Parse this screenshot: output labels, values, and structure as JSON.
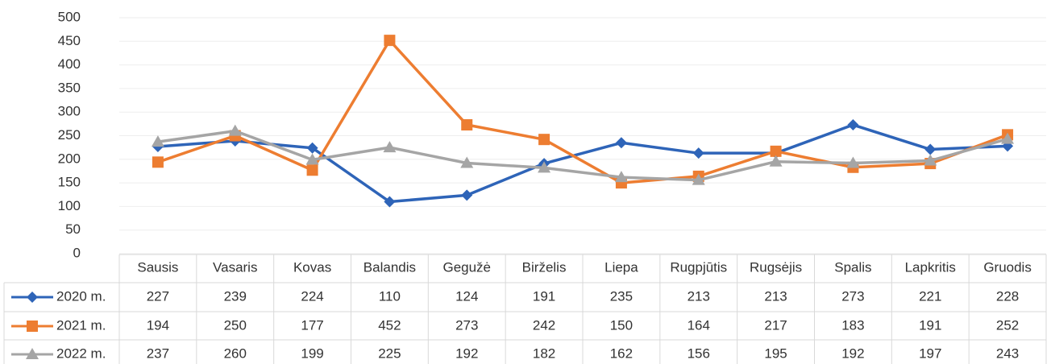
{
  "chart_data": {
    "type": "line",
    "categories": [
      "Sausis",
      "Vasaris",
      "Kovas",
      "Balandis",
      "Gegužė",
      "Birželis",
      "Liepa",
      "Rugpjūtis",
      "Rugsėjis",
      "Spalis",
      "Lapkritis",
      "Gruodis"
    ],
    "series": [
      {
        "name": "2020 m.",
        "color": "#2e64b8",
        "marker": "diamond",
        "values": [
          227,
          239,
          224,
          110,
          124,
          191,
          235,
          213,
          213,
          273,
          221,
          228
        ]
      },
      {
        "name": "2021 m.",
        "color": "#ed7d31",
        "marker": "square",
        "values": [
          194,
          250,
          177,
          452,
          273,
          242,
          150,
          164,
          217,
          183,
          191,
          252
        ]
      },
      {
        "name": "2022 m.",
        "color": "#a5a5a5",
        "marker": "triangle",
        "values": [
          237,
          260,
          199,
          225,
          192,
          182,
          162,
          156,
          195,
          192,
          197,
          243
        ]
      }
    ],
    "ylim": [
      0,
      500
    ],
    "yticks": [
      0,
      50,
      100,
      150,
      200,
      250,
      300,
      350,
      400,
      450,
      500
    ],
    "grid": true
  }
}
